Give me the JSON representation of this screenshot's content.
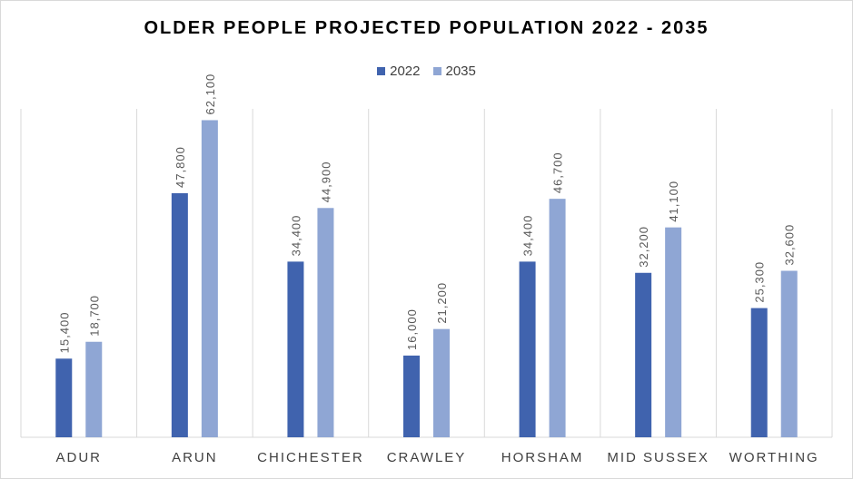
{
  "chart_data": {
    "type": "bar",
    "title": "OLDER PEOPLE PROJECTED POPULATION 2022 - 2035",
    "categories": [
      "ADUR",
      "ARUN",
      "CHICHESTER",
      "CRAWLEY",
      "HORSHAM",
      "MID SUSSEX",
      "WORTHING"
    ],
    "series": [
      {
        "name": "2022",
        "color": "#4063ae",
        "values": [
          15400,
          47800,
          34400,
          16000,
          34400,
          32200,
          25300
        ],
        "labels": [
          "15,400",
          "47,800",
          "34,400",
          "16,000",
          "34,400",
          "32,200",
          "25,300"
        ]
      },
      {
        "name": "2035",
        "color": "#8fa6d4",
        "values": [
          18700,
          62100,
          44900,
          21200,
          46700,
          41100,
          32600
        ],
        "labels": [
          "18,700",
          "62,100",
          "44,900",
          "21,200",
          "46,700",
          "41,100",
          "32,600"
        ]
      }
    ],
    "ylim": [
      0,
      70000
    ],
    "grid": "vertical separators",
    "legend": "top-center"
  }
}
